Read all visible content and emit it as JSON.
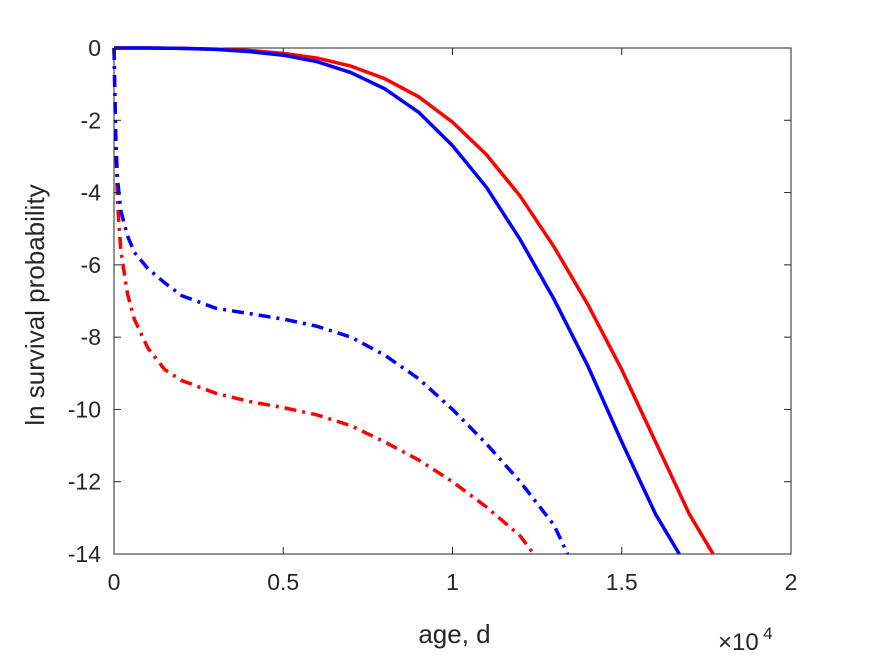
{
  "chart_data": {
    "type": "line",
    "title": "",
    "xlabel": "age, d",
    "ylabel": "ln survival probability",
    "x_exponent_label": {
      "base": "×10",
      "exponent": "4"
    },
    "xlim": [
      0,
      20000
    ],
    "ylim": [
      -14,
      0
    ],
    "x_ticks": [
      0,
      5000,
      10000,
      15000,
      20000
    ],
    "x_tick_labels": [
      "0",
      "0.5",
      "1",
      "1.5",
      "2"
    ],
    "y_ticks": [
      0,
      -2,
      -4,
      -6,
      -8,
      -10,
      -12,
      -14
    ],
    "y_tick_labels": [
      "0",
      "-2",
      "-4",
      "-6",
      "-8",
      "-10",
      "-12",
      "-14"
    ],
    "grid": false,
    "series": [
      {
        "color": "#ff0000",
        "style": "solid",
        "x": [
          0,
          1000,
          2000,
          3000,
          4000,
          5000,
          6000,
          7000,
          8000,
          9000,
          10000,
          11000,
          12000,
          13000,
          14000,
          15000,
          16000,
          17000,
          17700
        ],
        "y": [
          0,
          0,
          -0.01,
          -0.03,
          -0.07,
          -0.15,
          -0.28,
          -0.5,
          -0.85,
          -1.35,
          -2.05,
          -2.95,
          -4.1,
          -5.5,
          -7.1,
          -8.9,
          -10.9,
          -12.9,
          -14
        ]
      },
      {
        "color": "#0000ff",
        "style": "solid",
        "x": [
          0,
          1000,
          2000,
          3000,
          4000,
          5000,
          6000,
          7000,
          8000,
          9000,
          10000,
          11000,
          12000,
          13000,
          14000,
          15000,
          16000,
          16700
        ],
        "y": [
          0,
          0,
          -0.01,
          -0.04,
          -0.1,
          -0.2,
          -0.38,
          -0.68,
          -1.13,
          -1.78,
          -2.7,
          -3.85,
          -5.3,
          -6.95,
          -8.8,
          -10.9,
          -12.9,
          -14
        ]
      },
      {
        "color": "#ff0000",
        "style": "dashdot",
        "x": [
          0,
          50,
          100,
          200,
          400,
          600,
          1000,
          1500,
          2000,
          3000,
          4000,
          5000,
          6000,
          7000,
          8000,
          9000,
          10000,
          11000,
          12000,
          12400
        ],
        "y": [
          0,
          -2.5,
          -4.2,
          -5.6,
          -6.8,
          -7.5,
          -8.3,
          -8.9,
          -9.2,
          -9.55,
          -9.78,
          -9.95,
          -10.15,
          -10.45,
          -10.9,
          -11.4,
          -12.0,
          -12.7,
          -13.5,
          -14
        ]
      },
      {
        "color": "#0000ff",
        "style": "dashdot",
        "x": [
          0,
          50,
          100,
          200,
          400,
          600,
          1000,
          1500,
          2000,
          3000,
          4000,
          5000,
          6000,
          7000,
          8000,
          9000,
          10000,
          11000,
          12000,
          13000,
          13400
        ],
        "y": [
          0,
          -2.4,
          -3.6,
          -4.5,
          -5.2,
          -5.65,
          -6.1,
          -6.5,
          -6.85,
          -7.2,
          -7.35,
          -7.5,
          -7.7,
          -8.0,
          -8.5,
          -9.15,
          -10.0,
          -10.95,
          -12.0,
          -13.2,
          -14
        ]
      }
    ]
  }
}
